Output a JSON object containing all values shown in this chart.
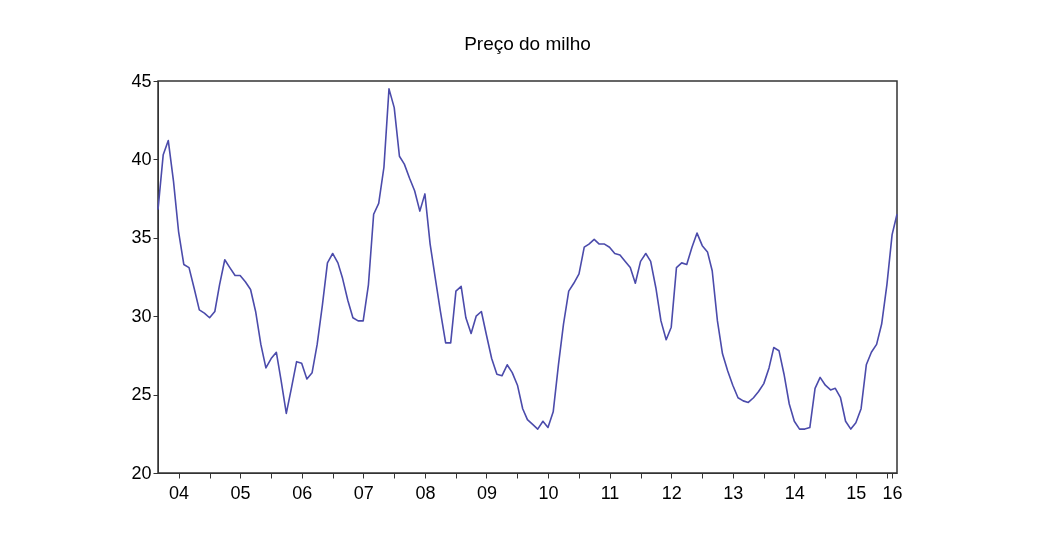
{
  "chart_data": {
    "type": "line",
    "title": "Preço do milho",
    "x": [
      "2004-03",
      "2004-04",
      "2004-05",
      "2004-06",
      "2004-07",
      "2004-08",
      "2004-09",
      "2004-10",
      "2004-11",
      "2004-12",
      "2005-01",
      "2005-02",
      "2005-03",
      "2005-04",
      "2005-05",
      "2005-06",
      "2005-07",
      "2005-08",
      "2005-09",
      "2005-10",
      "2005-11",
      "2005-12",
      "2006-01",
      "2006-02",
      "2006-03",
      "2006-04",
      "2006-05",
      "2006-06",
      "2006-07",
      "2006-08",
      "2006-09",
      "2006-10",
      "2006-11",
      "2006-12",
      "2007-01",
      "2007-02",
      "2007-03",
      "2007-04",
      "2007-05",
      "2007-06",
      "2007-07",
      "2007-08",
      "2007-09",
      "2007-10",
      "2007-11",
      "2007-12",
      "2008-01",
      "2008-02",
      "2008-03",
      "2008-04",
      "2008-05",
      "2008-06",
      "2008-07",
      "2008-08",
      "2008-09",
      "2008-10",
      "2008-11",
      "2008-12",
      "2009-01",
      "2009-02",
      "2009-03",
      "2009-04",
      "2009-05",
      "2009-06",
      "2009-07",
      "2009-08",
      "2009-09",
      "2009-10",
      "2009-11",
      "2009-12",
      "2010-01",
      "2010-02",
      "2010-03",
      "2010-04",
      "2010-05",
      "2010-06",
      "2010-07",
      "2010-08",
      "2010-09",
      "2010-10",
      "2010-11",
      "2010-12",
      "2011-01",
      "2011-02",
      "2011-03",
      "2011-04",
      "2011-05",
      "2011-06",
      "2011-07",
      "2011-08",
      "2011-09",
      "2011-10",
      "2011-11",
      "2011-12",
      "2012-01",
      "2012-02",
      "2012-03",
      "2012-04",
      "2012-05",
      "2012-06",
      "2012-07",
      "2012-08",
      "2012-09",
      "2012-10",
      "2012-11",
      "2012-12",
      "2013-01",
      "2013-02",
      "2013-03",
      "2013-04",
      "2013-05",
      "2013-06",
      "2013-07",
      "2013-08",
      "2013-09",
      "2013-10",
      "2013-11",
      "2013-12",
      "2014-01",
      "2014-02",
      "2014-03",
      "2014-04",
      "2014-05",
      "2014-06",
      "2014-07",
      "2014-08",
      "2014-09",
      "2014-10",
      "2014-11",
      "2014-12",
      "2015-01",
      "2015-02",
      "2015-03",
      "2015-04",
      "2015-05",
      "2015-06",
      "2015-07",
      "2015-08",
      "2015-09",
      "2015-10",
      "2015-11",
      "2015-12",
      "2016-01",
      "2016-02",
      "2016-03"
    ],
    "values": [
      36.8,
      40.3,
      41.2,
      38.6,
      35.4,
      33.3,
      33.1,
      31.8,
      30.4,
      30.2,
      29.9,
      30.3,
      32.0,
      33.6,
      33.1,
      32.6,
      32.6,
      32.2,
      31.7,
      30.3,
      28.2,
      26.7,
      27.3,
      27.7,
      25.9,
      23.8,
      25.4,
      27.1,
      27.0,
      26.0,
      26.4,
      28.2,
      30.7,
      33.4,
      34.0,
      33.4,
      32.4,
      31.0,
      29.9,
      29.7,
      29.7,
      32.0,
      36.5,
      37.2,
      39.5,
      44.5,
      43.3,
      40.2,
      39.7,
      38.8,
      38.0,
      36.7,
      37.8,
      34.6,
      32.4,
      30.3,
      28.3,
      28.3,
      31.6,
      31.9,
      29.9,
      28.9,
      30.0,
      30.3,
      28.8,
      27.3,
      26.3,
      26.2,
      26.9,
      26.4,
      25.6,
      24.1,
      23.4,
      23.1,
      22.8,
      23.3,
      22.9,
      23.9,
      26.9,
      29.5,
      31.6,
      32.1,
      32.7,
      34.4,
      34.6,
      34.9,
      34.6,
      34.6,
      34.4,
      34.0,
      33.9,
      33.5,
      33.1,
      32.1,
      33.5,
      34.0,
      33.5,
      31.8,
      29.7,
      28.5,
      29.3,
      33.1,
      33.4,
      33.3,
      34.4,
      35.3,
      34.5,
      34.1,
      32.9,
      29.7,
      27.6,
      26.5,
      25.6,
      24.8,
      24.6,
      24.5,
      24.8,
      25.2,
      25.7,
      26.7,
      28.0,
      27.8,
      26.3,
      24.4,
      23.3,
      22.8,
      22.8,
      22.9,
      25.4,
      26.1,
      25.6,
      25.3,
      25.4,
      24.8,
      23.3,
      22.8,
      23.2,
      24.1,
      26.9,
      27.7,
      28.2,
      29.5,
      32.0,
      35.2,
      36.5
    ],
    "color": "#4b4bab",
    "xlim": [
      "2004-03",
      "2016-03"
    ],
    "xticks": [
      {
        "value": "2004-07",
        "label": "04"
      },
      {
        "value": "2005-01",
        "label": null
      },
      {
        "value": "2005-07",
        "label": "05"
      },
      {
        "value": "2006-01",
        "label": null
      },
      {
        "value": "2006-07",
        "label": "06"
      },
      {
        "value": "2007-01",
        "label": null
      },
      {
        "value": "2007-07",
        "label": "07"
      },
      {
        "value": "2008-01",
        "label": null
      },
      {
        "value": "2008-07",
        "label": "08"
      },
      {
        "value": "2009-01",
        "label": null
      },
      {
        "value": "2009-07",
        "label": "09"
      },
      {
        "value": "2010-01",
        "label": null
      },
      {
        "value": "2010-07",
        "label": "10"
      },
      {
        "value": "2011-01",
        "label": null
      },
      {
        "value": "2011-07",
        "label": "11"
      },
      {
        "value": "2012-01",
        "label": null
      },
      {
        "value": "2012-07",
        "label": "12"
      },
      {
        "value": "2013-01",
        "label": null
      },
      {
        "value": "2013-07",
        "label": "13"
      },
      {
        "value": "2014-01",
        "label": null
      },
      {
        "value": "2014-07",
        "label": "14"
      },
      {
        "value": "2015-01",
        "label": null
      },
      {
        "value": "2015-07",
        "label": "15"
      },
      {
        "value": "2016-01",
        "label": null
      },
      {
        "value": "2016-02",
        "label": "16"
      }
    ],
    "ylim": [
      20,
      45
    ],
    "yticks": [
      20,
      25,
      30,
      35,
      40,
      45
    ],
    "grid": false,
    "line_style": "solid"
  }
}
